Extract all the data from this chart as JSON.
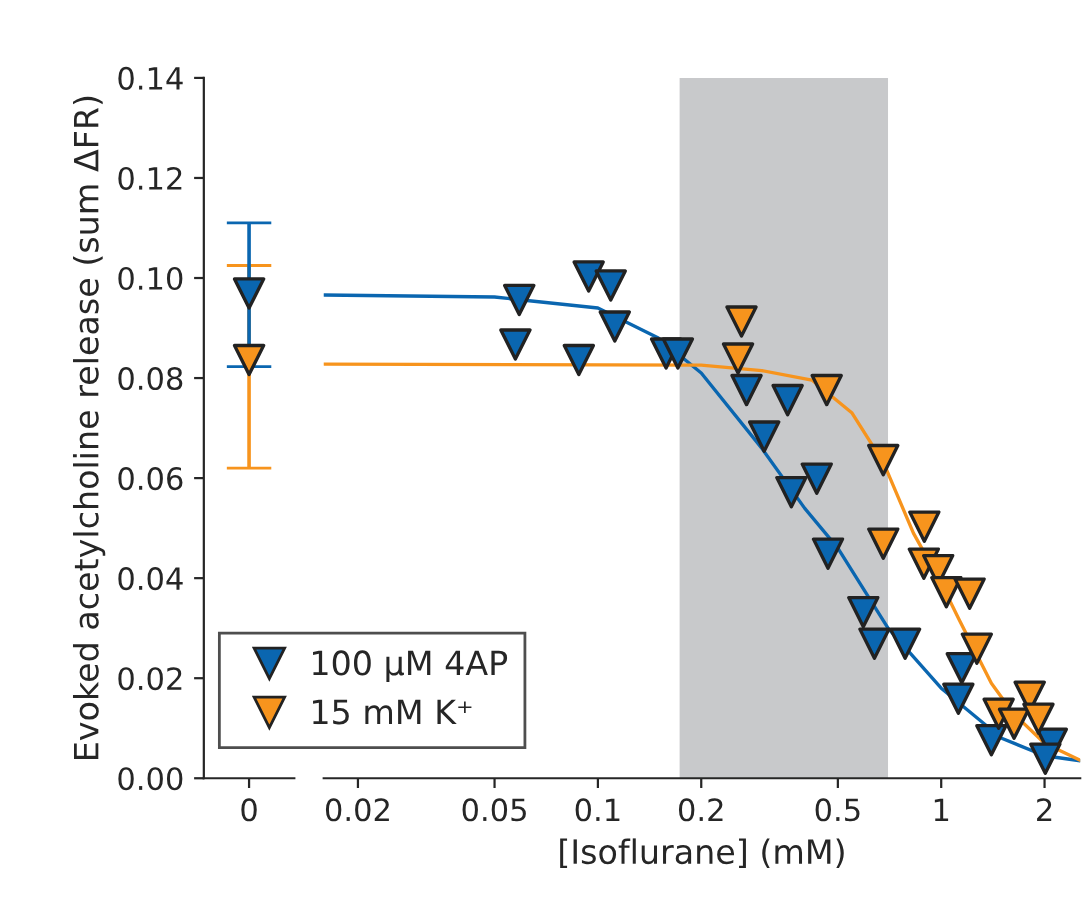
{
  "chart_data": [
    {
      "type": "scatter",
      "categories": [
        "0"
      ],
      "ylabel": "Evoked acetylcholine release (sum ΔFR)",
      "ylim": [
        0,
        0.14
      ],
      "yticks": [
        {
          "value": 0,
          "label": "0.00"
        },
        {
          "value": 0.02,
          "label": "0.02"
        },
        {
          "value": 0.04,
          "label": "0.04"
        },
        {
          "value": 0.06,
          "label": "0.06"
        },
        {
          "value": 0.08,
          "label": "0.08"
        },
        {
          "value": 0.1,
          "label": "0.10"
        },
        {
          "value": 0.12,
          "label": "0.12"
        },
        {
          "value": 0.14,
          "label": "0.14"
        }
      ],
      "marker": "triangle",
      "grid": false,
      "series": [
        {
          "color": "#f7941d",
          "values": [
            0.0836
          ],
          "errors": [
            [
              0.062,
              0.1025
            ]
          ]
        },
        {
          "color": "#0a66b0",
          "values": [
            0.0969
          ],
          "errors": [
            [
              0.0823,
              0.111
            ]
          ]
        }
      ]
    },
    {
      "type": "scatter",
      "xlabel": "[Isoflurane] (mM)",
      "log": "x",
      "xlim": [
        0.0159,
        2.54
      ],
      "xticks": [
        0.02,
        0.05,
        0.1,
        0.2,
        0.5,
        1,
        2
      ],
      "ylim": [
        0,
        0.14
      ],
      "tick_labels": "x",
      "marker": "triangle",
      "grid": false,
      "legend": "bottom left",
      "bands": [
        {
          "axis": "x",
          "from": 0.173,
          "to": 0.7,
          "color": "#c8c9cb"
        }
      ],
      "series": [
        {
          "name": "100 μM 4AP",
          "color": "#0a66b0",
          "x": [
            0.059,
            0.0575,
            0.088,
            0.094,
            0.109,
            0.112,
            0.158,
            0.171,
            0.271,
            0.357,
            0.305,
            0.434,
            0.366,
            0.468,
            0.593,
            0.639,
            0.785,
            1.148,
            1.122,
            1.4,
            2.1,
            2.01
          ],
          "values": [
            0.0956,
            0.0867,
            0.0836,
            0.1003,
            0.0985,
            0.0903,
            0.0849,
            0.0849,
            0.0776,
            0.0756,
            0.0683,
            0.0599,
            0.0572,
            0.0449,
            0.0332,
            0.0269,
            0.0269,
            0.022,
            0.0159,
            0.0076,
            0.0069,
            0.0039
          ]
        },
        {
          "name": "15 mM K⁺",
          "color": "#f7941d",
          "x": [
            0.262,
            0.256,
            0.464,
            0.678,
            0.678,
            0.893,
            0.89,
            0.98,
            1.035,
            1.21,
            1.27,
            1.47,
            1.63,
            1.81,
            1.92
          ],
          "values": [
            0.0913,
            0.0839,
            0.0776,
            0.0636,
            0.0469,
            0.0503,
            0.0429,
            0.0416,
            0.0372,
            0.0369,
            0.0259,
            0.0129,
            0.0109,
            0.0163,
            0.0119
          ]
        },
        {
          "type": "line",
          "marker": "none",
          "color": "#0a66b0",
          "x": [
            0.0159,
            0.05,
            0.1,
            0.15,
            0.2,
            0.3,
            0.4,
            0.5,
            0.7,
            1.0,
            1.5,
            2.0,
            2.54
          ],
          "values": [
            0.0966,
            0.0962,
            0.094,
            0.088,
            0.081,
            0.066,
            0.054,
            0.046,
            0.03,
            0.018,
            0.008,
            0.0045,
            0.0035
          ]
        },
        {
          "type": "line",
          "marker": "none",
          "color": "#f7941d",
          "x": [
            0.0159,
            0.2,
            0.3,
            0.42,
            0.55,
            0.68,
            0.83,
            1.0,
            1.13,
            1.4,
            1.62,
            2.0,
            2.54
          ],
          "values": [
            0.0828,
            0.0826,
            0.0815,
            0.0796,
            0.073,
            0.063,
            0.049,
            0.039,
            0.0316,
            0.019,
            0.013,
            0.007,
            0.0036
          ]
        }
      ]
    }
  ]
}
